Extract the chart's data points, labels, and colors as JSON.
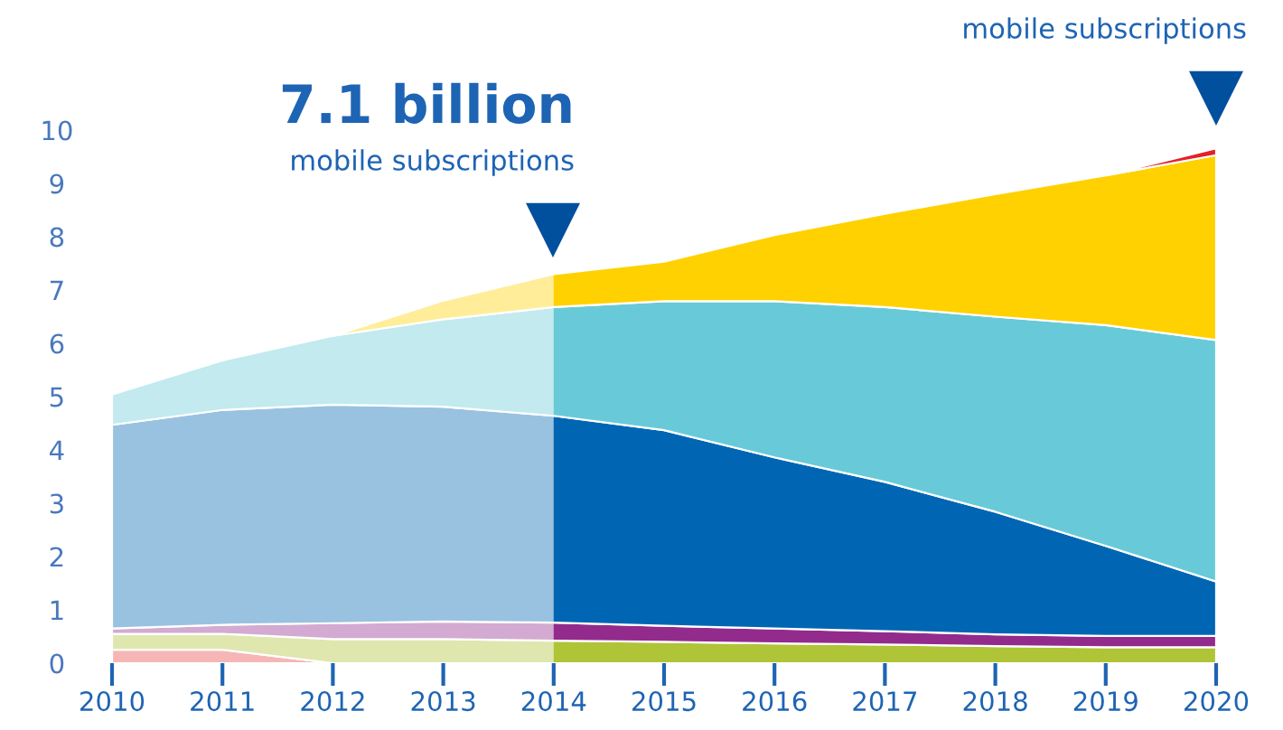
{
  "chart_data": {
    "type": "area",
    "stacked": true,
    "x": [
      2010,
      2011,
      2012,
      2013,
      2014,
      2015,
      2016,
      2017,
      2018,
      2019,
      2020
    ],
    "xlim": [
      2010,
      2020
    ],
    "xticks": [
      2010,
      2011,
      2012,
      2013,
      2014,
      2015,
      2016,
      2017,
      2018,
      2019,
      2020
    ],
    "ylim": [
      0,
      10
    ],
    "yticks": [
      0,
      1,
      2,
      3,
      4,
      5,
      6,
      7,
      8,
      9,
      10
    ],
    "grid": false,
    "legend": false,
    "series": [
      {
        "values": [
          0.25,
          0.25,
          0,
          null,
          null,
          null,
          null,
          null,
          null,
          null,
          null
        ],
        "color": "#e84a4a"
      },
      {
        "values": [
          0.3,
          0.3,
          0.45,
          0.45,
          0.42,
          0.4,
          0.37,
          0.35,
          0.32,
          0.3,
          0.3
        ],
        "color": "#b0c437"
      },
      {
        "values": [
          0.1,
          0.17,
          0.3,
          0.33,
          0.34,
          0.3,
          0.28,
          0.25,
          0.22,
          0.21,
          0.21
        ],
        "color": "#922b8c"
      },
      {
        "values": [
          3.82,
          4.03,
          4.1,
          4.03,
          3.88,
          3.67,
          3.21,
          2.8,
          2.3,
          1.69,
          1.02
        ],
        "color": "#0066b3"
      },
      {
        "values": [
          0.57,
          0.93,
          1.29,
          1.64,
          2.04,
          2.42,
          2.93,
          3.28,
          3.66,
          4.14,
          4.53
        ],
        "color": "#68cad8"
      },
      {
        "values": [
          null,
          null,
          0,
          0.35,
          0.62,
          0.74,
          1.24,
          1.75,
          2.3,
          2.81,
          3.47
        ],
        "color": "#ffd100"
      },
      {
        "values": [
          null,
          null,
          null,
          null,
          null,
          null,
          null,
          null,
          null,
          0,
          0.13
        ],
        "color": "#e3202a"
      }
    ],
    "bands": [
      {
        "axis": "x",
        "from": 2010,
        "to": 2014,
        "color": "#ffffff"
      }
    ],
    "annotations": [
      "7.1 billion",
      "mobile subscriptions",
      "mobile subscriptions"
    ]
  }
}
